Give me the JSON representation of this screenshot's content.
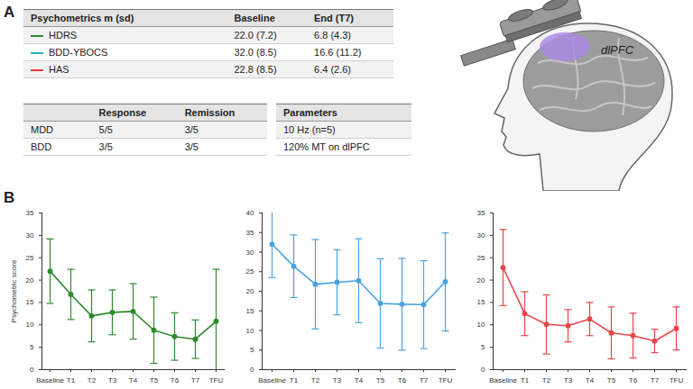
{
  "panels": {
    "a": "A",
    "b": "B"
  },
  "psychometrics_table": {
    "header": [
      "Psychometrics m (sd)",
      "Baseline",
      "End (T7)"
    ],
    "rows": [
      {
        "name": "HDRS",
        "color": "#2e8b2e",
        "cells": [
          "22.0 (7.2)",
          "6.8 (4.3)"
        ]
      },
      {
        "name": "BDD-YBOCS",
        "color": "#1fb5c9",
        "cells": [
          "32.0 (8.5)",
          "16.6 (11.2)"
        ]
      },
      {
        "name": "HAS",
        "color": "#e8373c",
        "cells": [
          "22.8 (8.5)",
          "6.4 (2.6)"
        ]
      }
    ]
  },
  "outcome_table": {
    "header": [
      "Response",
      "Remission"
    ],
    "rows": [
      {
        "name": "MDD",
        "cells": [
          "5/5",
          "3/5"
        ]
      },
      {
        "name": "BDD",
        "cells": [
          "3/5",
          "3/5"
        ]
      }
    ]
  },
  "parameters_table": {
    "header": "Parameters",
    "rows": [
      "10 Hz (n=5)",
      "120% MT on dlPFC"
    ]
  },
  "illustration_label": "dlPFC",
  "chart_data": [
    {
      "type": "line",
      "color": "#2e8b2e",
      "marker": "circle",
      "grid": false,
      "ylabel": "Psychometric score",
      "categories": [
        "Baseline",
        "T1",
        "T2",
        "T3",
        "T4",
        "T5",
        "T6",
        "T7",
        "TFU"
      ],
      "values": [
        22.0,
        16.8,
        12.0,
        12.8,
        13.0,
        8.8,
        7.4,
        6.8,
        10.8
      ],
      "errors": [
        7.2,
        5.6,
        5.8,
        5.0,
        6.2,
        7.4,
        5.3,
        4.3,
        11.6
      ],
      "ylim": [
        0,
        35
      ],
      "yticks": [
        0,
        5,
        10,
        15,
        20,
        25,
        30,
        35
      ]
    },
    {
      "type": "line",
      "color": "#4aa3e0",
      "marker": "circle",
      "grid": false,
      "categories": [
        "Baseline",
        "T1",
        "T2",
        "T3",
        "T4",
        "T5",
        "T6",
        "T7",
        "TFU"
      ],
      "values": [
        32.0,
        26.4,
        21.8,
        22.3,
        22.7,
        16.9,
        16.7,
        16.6,
        22.4
      ],
      "errors": [
        8.5,
        8.0,
        11.4,
        8.3,
        10.7,
        11.4,
        11.7,
        11.2,
        12.5
      ],
      "ylim": [
        0,
        40
      ],
      "yticks": [
        0,
        5,
        10,
        15,
        20,
        25,
        30,
        35,
        40
      ]
    },
    {
      "type": "line",
      "color": "#e8474a",
      "marker": "circle",
      "grid": false,
      "categories": [
        "Baseline",
        "T1",
        "T2",
        "T3",
        "T4",
        "T5",
        "T6",
        "T7",
        "TFU"
      ],
      "values": [
        22.8,
        12.5,
        10.1,
        9.8,
        11.3,
        8.2,
        7.6,
        6.4,
        9.2
      ],
      "errors": [
        8.5,
        4.9,
        6.6,
        3.6,
        3.7,
        5.8,
        5.0,
        2.6,
        4.8
      ],
      "ylim": [
        0,
        35
      ],
      "yticks": [
        0,
        5,
        10,
        15,
        20,
        25,
        30,
        35
      ]
    }
  ]
}
